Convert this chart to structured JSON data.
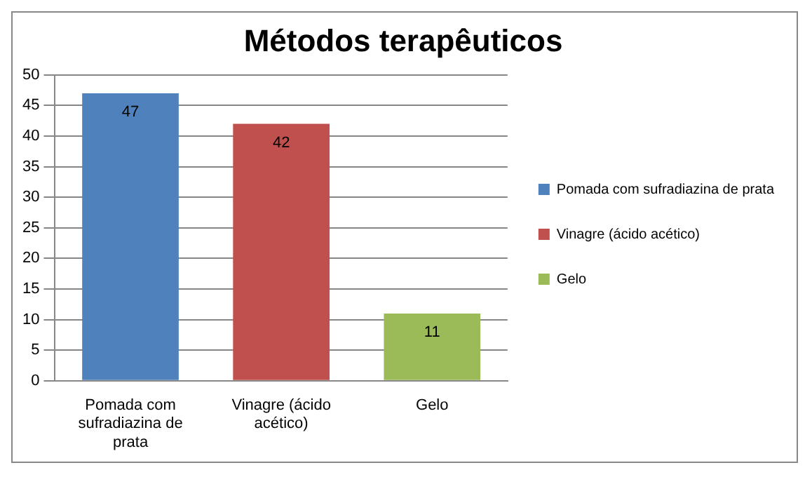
{
  "chart_data": {
    "type": "bar",
    "title": "Métodos terapêuticos",
    "categories": [
      "Pomada com sufradiazina de prata",
      "Vinagre (ácido acético)",
      "Gelo"
    ],
    "series": [
      {
        "name": "Pomada com sufradiazina de prata",
        "color": "#4f81bd",
        "values": [
          47,
          null,
          null
        ]
      },
      {
        "name": "Vinagre (ácido acético)",
        "color": "#c0504d",
        "values": [
          null,
          42,
          null
        ]
      },
      {
        "name": "Gelo",
        "color": "#9bbb59",
        "values": [
          null,
          null,
          11
        ]
      }
    ],
    "ylim": [
      0,
      50
    ],
    "yticks": [
      0,
      5,
      10,
      15,
      20,
      25,
      30,
      35,
      40,
      45,
      50
    ],
    "grid": "y",
    "legend": "right",
    "data_labels": true
  }
}
